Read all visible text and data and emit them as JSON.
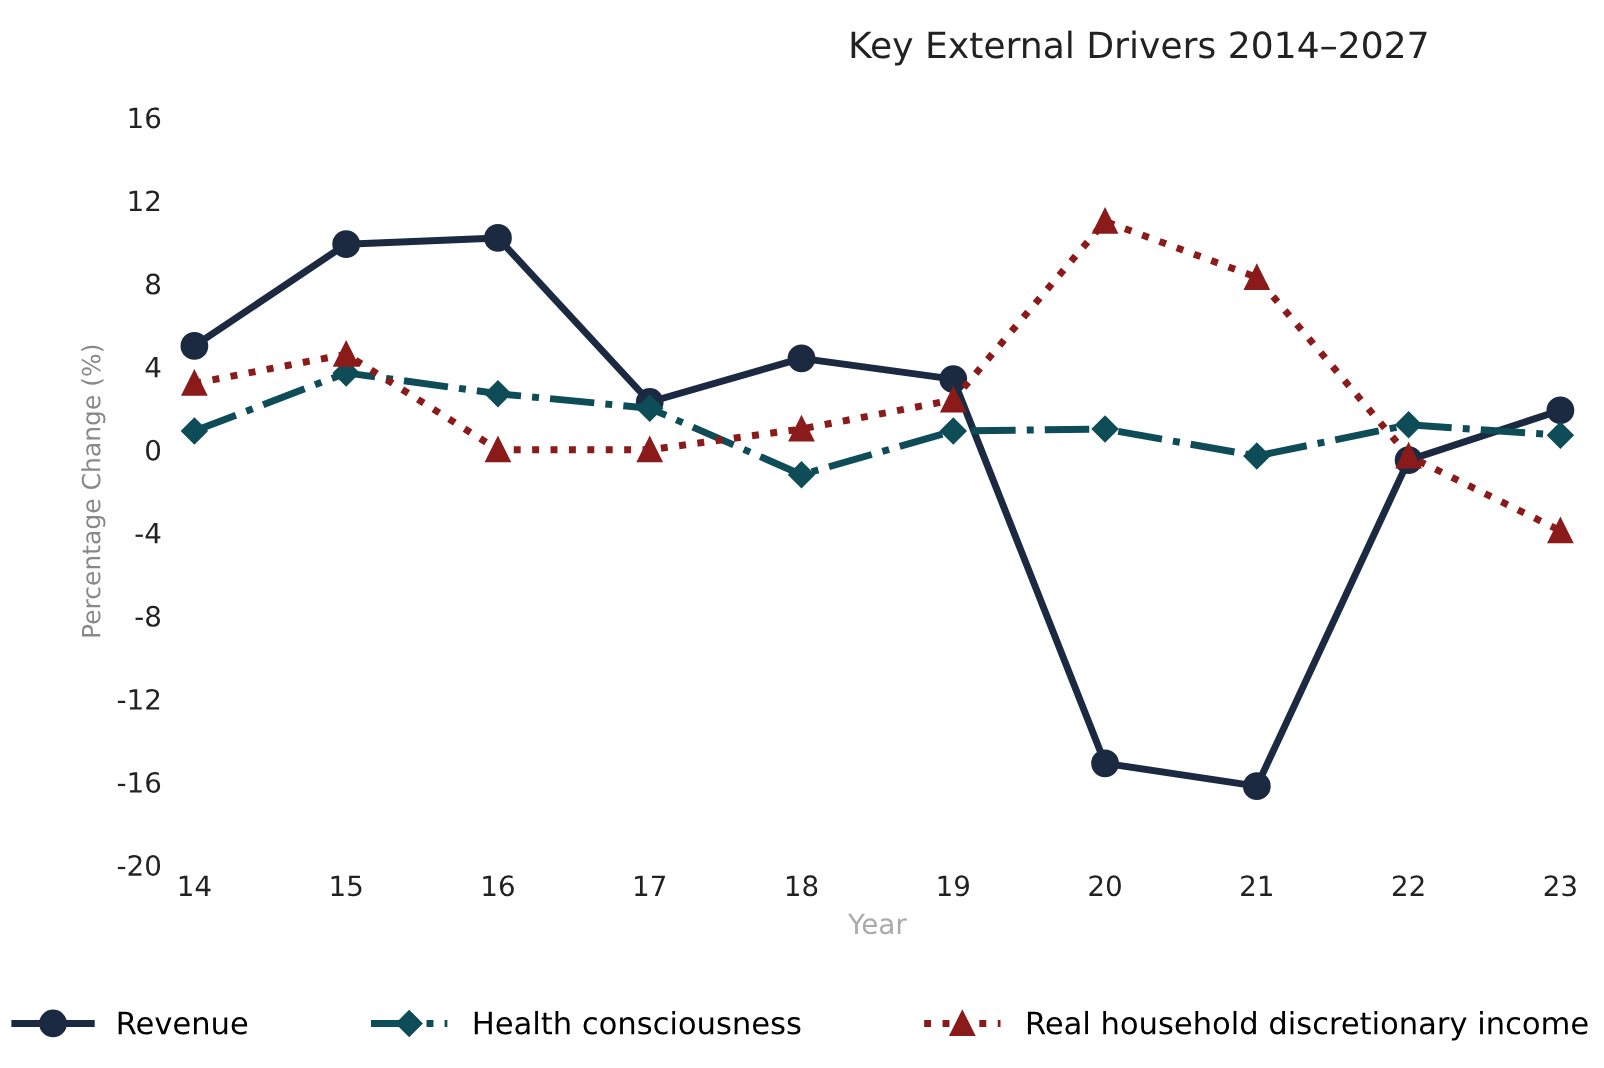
{
  "chart_data": {
    "type": "line",
    "title": "Key External Drivers 2014–2027",
    "xlabel": "Year",
    "ylabel": "Percentage Change (%)",
    "categories": [
      "14",
      "15",
      "16",
      "17",
      "18",
      "19",
      "20",
      "21",
      "22",
      "23"
    ],
    "series": [
      {
        "name": "Revenue",
        "color": "#1b2a41",
        "marker": "circle",
        "line_style": "solid",
        "values": [
          5.0,
          9.9,
          10.2,
          2.3,
          4.4,
          3.4,
          -15.1,
          -16.2,
          -0.5,
          1.9
        ]
      },
      {
        "name": "Health consciousness",
        "color": "#0e4d57",
        "marker": "diamond",
        "line_style": "dashdot",
        "values": [
          0.9,
          3.7,
          2.7,
          2.0,
          -1.2,
          0.9,
          1.0,
          -0.3,
          1.2,
          0.7
        ]
      },
      {
        "name": "Real household discretionary income",
        "color": "#8b1a1a",
        "marker": "triangle",
        "line_style": "dotted",
        "values": [
          3.2,
          4.6,
          0.0,
          0.0,
          1.0,
          2.4,
          11.0,
          8.3,
          -0.3,
          -3.9
        ]
      }
    ],
    "ylim": [
      -20,
      16
    ],
    "yticks": [
      -20,
      -16,
      -12,
      -8,
      -4,
      0,
      4,
      8,
      12,
      16
    ],
    "grid": false,
    "legend": "bottom"
  }
}
